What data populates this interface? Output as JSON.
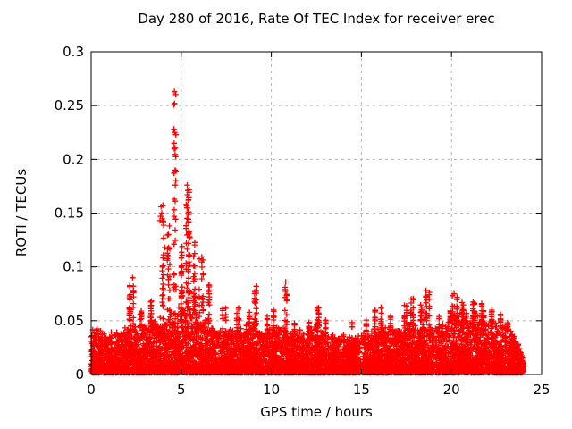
{
  "chart_data": {
    "type": "scatter",
    "title": "Day 280 of 2016, Rate Of TEC Index for receiver erec",
    "xlabel": "GPS time / hours",
    "ylabel": "ROTI / TECUs",
    "xlim": [
      0,
      25
    ],
    "ylim": [
      0,
      0.3
    ],
    "xticks": [
      {
        "v": 0,
        "label": "0"
      },
      {
        "v": 5,
        "label": "5"
      },
      {
        "v": 10,
        "label": "10"
      },
      {
        "v": 15,
        "label": "15"
      },
      {
        "v": 20,
        "label": "20"
      },
      {
        "v": 25,
        "label": "25"
      }
    ],
    "yticks": [
      {
        "v": 0,
        "label": "0"
      },
      {
        "v": 0.05,
        "label": "0.05"
      },
      {
        "v": 0.1,
        "label": "0.1"
      },
      {
        "v": 0.15,
        "label": "0.15"
      },
      {
        "v": 0.2,
        "label": "0.2"
      },
      {
        "v": 0.25,
        "label": "0.25"
      },
      {
        "v": 0.3,
        "label": "0.3"
      }
    ],
    "grid": true,
    "grid_color": "#b3b3b3",
    "legend": "none",
    "marker": {
      "symbol": "plus",
      "color": "#ff0000",
      "size": 7
    },
    "data_time_range_hours": [
      0,
      24
    ],
    "seed": 280,
    "dense_band": {
      "count": 7200,
      "base": 0.0015,
      "skew": 1.9,
      "low_density_gaps": [
        [
          14.93,
          15.08
        ],
        [
          19.0,
          19.15
        ]
      ],
      "top_profile": [
        [
          0,
          0.046
        ],
        [
          0.3,
          0.042
        ],
        [
          0.8,
          0.038
        ],
        [
          1.3,
          0.038
        ],
        [
          1.8,
          0.04
        ],
        [
          2.2,
          0.046
        ],
        [
          2.6,
          0.042
        ],
        [
          3.0,
          0.044
        ],
        [
          3.4,
          0.046
        ],
        [
          3.8,
          0.05
        ],
        [
          4.2,
          0.052
        ],
        [
          4.6,
          0.055
        ],
        [
          5.0,
          0.06
        ],
        [
          5.4,
          0.062
        ],
        [
          5.8,
          0.055
        ],
        [
          6.2,
          0.05
        ],
        [
          6.6,
          0.046
        ],
        [
          7.0,
          0.04
        ],
        [
          7.5,
          0.04
        ],
        [
          8.0,
          0.042
        ],
        [
          8.5,
          0.044
        ],
        [
          9.0,
          0.046
        ],
        [
          9.5,
          0.04
        ],
        [
          10.0,
          0.042
        ],
        [
          10.5,
          0.044
        ],
        [
          11.0,
          0.042
        ],
        [
          11.5,
          0.038
        ],
        [
          12.0,
          0.042
        ],
        [
          12.5,
          0.044
        ],
        [
          13.0,
          0.038
        ],
        [
          13.5,
          0.035
        ],
        [
          14.0,
          0.035
        ],
        [
          14.5,
          0.033
        ],
        [
          15.0,
          0.035
        ],
        [
          15.5,
          0.04
        ],
        [
          16.0,
          0.042
        ],
        [
          16.5,
          0.04
        ],
        [
          17.0,
          0.042
        ],
        [
          17.5,
          0.046
        ],
        [
          18.0,
          0.046
        ],
        [
          18.5,
          0.05
        ],
        [
          19.0,
          0.042
        ],
        [
          19.5,
          0.044
        ],
        [
          20.0,
          0.05
        ],
        [
          20.5,
          0.052
        ],
        [
          21.0,
          0.054
        ],
        [
          21.5,
          0.052
        ],
        [
          22.0,
          0.05
        ],
        [
          22.5,
          0.046
        ],
        [
          23.0,
          0.042
        ],
        [
          23.4,
          0.038
        ],
        [
          23.7,
          0.028
        ],
        [
          23.9,
          0.018
        ],
        [
          24.0,
          0.012
        ]
      ]
    },
    "spike_clusters": [
      {
        "t": 2.3,
        "max": 0.083,
        "n": 26,
        "w": 0.35
      },
      {
        "t": 2.75,
        "max": 0.065,
        "n": 14,
        "w": 0.2
      },
      {
        "t": 3.35,
        "max": 0.072,
        "n": 18,
        "w": 0.3
      },
      {
        "t": 3.9,
        "max": 0.158,
        "n": 26,
        "w": 0.3
      },
      {
        "t": 4.3,
        "max": 0.135,
        "n": 22,
        "w": 0.25
      },
      {
        "t": 4.63,
        "max": 0.265,
        "n": 30,
        "w": 0.15
      },
      {
        "t": 4.95,
        "max": 0.12,
        "n": 26,
        "w": 0.2
      },
      {
        "t": 5.35,
        "max": 0.177,
        "n": 60,
        "w": 0.35
      },
      {
        "t": 5.75,
        "max": 0.13,
        "n": 24,
        "w": 0.3
      },
      {
        "t": 6.1,
        "max": 0.11,
        "n": 22,
        "w": 0.25
      },
      {
        "t": 6.5,
        "max": 0.085,
        "n": 18,
        "w": 0.25
      },
      {
        "t": 7.4,
        "max": 0.062,
        "n": 12,
        "w": 0.25
      },
      {
        "t": 8.15,
        "max": 0.062,
        "n": 12,
        "w": 0.2
      },
      {
        "t": 8.7,
        "max": 0.058,
        "n": 10,
        "w": 0.2
      },
      {
        "t": 9.1,
        "max": 0.083,
        "n": 24,
        "w": 0.3
      },
      {
        "t": 9.8,
        "max": 0.055,
        "n": 8,
        "w": 0.2
      },
      {
        "t": 10.2,
        "max": 0.06,
        "n": 10,
        "w": 0.2
      },
      {
        "t": 10.8,
        "max": 0.087,
        "n": 14,
        "w": 0.15
      },
      {
        "t": 11.3,
        "max": 0.055,
        "n": 8,
        "w": 0.2
      },
      {
        "t": 12.0,
        "max": 0.05,
        "n": 8,
        "w": 0.2
      },
      {
        "t": 12.5,
        "max": 0.063,
        "n": 16,
        "w": 0.3
      },
      {
        "t": 13.1,
        "max": 0.052,
        "n": 8,
        "w": 0.2
      },
      {
        "t": 14.5,
        "max": 0.052,
        "n": 6,
        "w": 0.15
      },
      {
        "t": 15.3,
        "max": 0.055,
        "n": 10,
        "w": 0.25
      },
      {
        "t": 15.8,
        "max": 0.06,
        "n": 12,
        "w": 0.2
      },
      {
        "t": 16.15,
        "max": 0.068,
        "n": 10,
        "w": 0.15
      },
      {
        "t": 16.6,
        "max": 0.055,
        "n": 8,
        "w": 0.2
      },
      {
        "t": 17.4,
        "max": 0.065,
        "n": 14,
        "w": 0.25
      },
      {
        "t": 17.85,
        "max": 0.072,
        "n": 16,
        "w": 0.2
      },
      {
        "t": 18.3,
        "max": 0.065,
        "n": 12,
        "w": 0.2
      },
      {
        "t": 18.65,
        "max": 0.079,
        "n": 20,
        "w": 0.25
      },
      {
        "t": 19.4,
        "max": 0.055,
        "n": 8,
        "w": 0.2
      },
      {
        "t": 19.9,
        "max": 0.06,
        "n": 10,
        "w": 0.2
      },
      {
        "t": 20.2,
        "max": 0.078,
        "n": 22,
        "w": 0.3
      },
      {
        "t": 20.7,
        "max": 0.068,
        "n": 16,
        "w": 0.3
      },
      {
        "t": 21.2,
        "max": 0.068,
        "n": 16,
        "w": 0.3
      },
      {
        "t": 21.7,
        "max": 0.066,
        "n": 14,
        "w": 0.3
      },
      {
        "t": 22.2,
        "max": 0.062,
        "n": 12,
        "w": 0.3
      },
      {
        "t": 22.7,
        "max": 0.056,
        "n": 10,
        "w": 0.25
      },
      {
        "t": 23.2,
        "max": 0.05,
        "n": 8,
        "w": 0.2
      }
    ],
    "outliers": [
      [
        4.62,
        0.263
      ],
      [
        4.63,
        0.252
      ],
      [
        4.64,
        0.225
      ],
      [
        4.66,
        0.19
      ],
      [
        5.33,
        0.176
      ],
      [
        5.36,
        0.171
      ],
      [
        5.34,
        0.167
      ],
      [
        5.39,
        0.162
      ],
      [
        5.28,
        0.158
      ],
      [
        3.88,
        0.156
      ],
      [
        3.92,
        0.15
      ],
      [
        3.85,
        0.147
      ],
      [
        4.61,
        0.147
      ],
      [
        3.82,
        0.143
      ],
      [
        4.35,
        0.138
      ],
      [
        5.45,
        0.128
      ],
      [
        4.08,
        0.118
      ],
      [
        10.8,
        0.086
      ],
      [
        2.3,
        0.09
      ]
    ]
  }
}
